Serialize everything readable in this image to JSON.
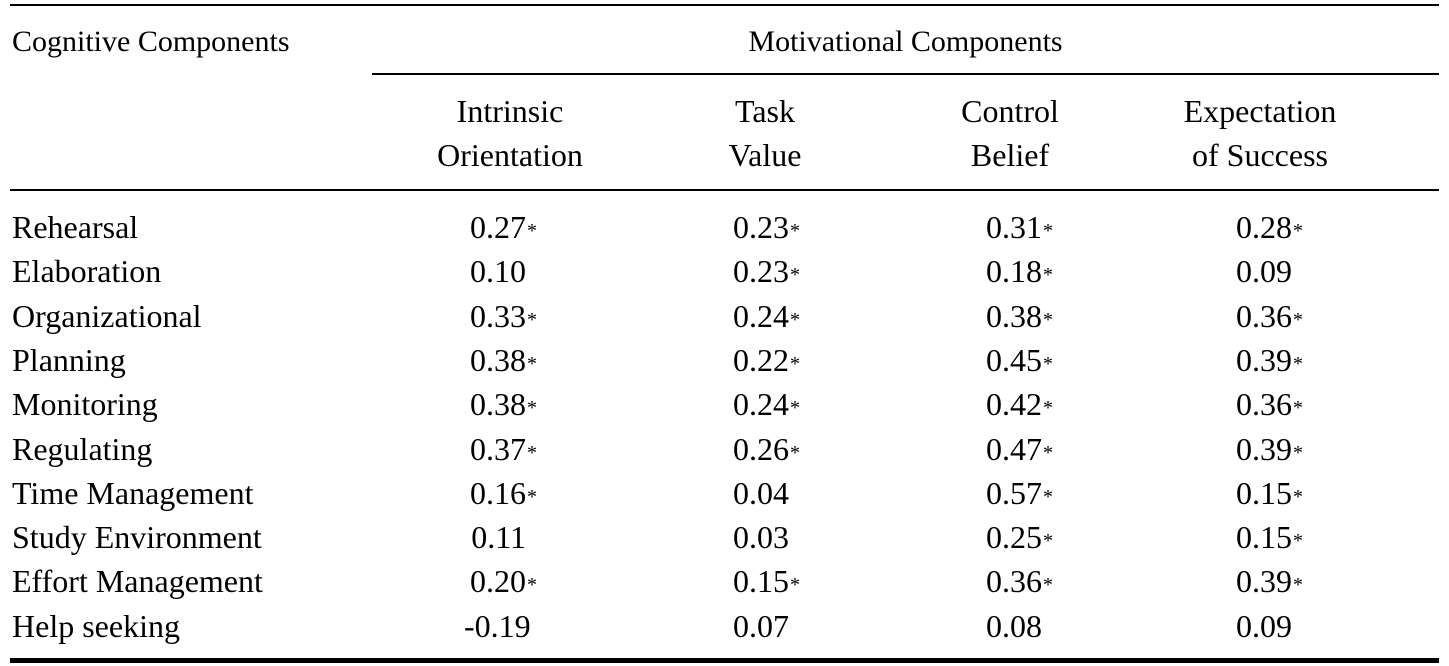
{
  "table": {
    "stub_heading": "Cognitive Components",
    "group_heading": "Motivational Components",
    "columns": [
      [
        "Intrinsic",
        "Orientation"
      ],
      [
        "Task",
        "Value"
      ],
      [
        "Control",
        "Belief"
      ],
      [
        "Expectation",
        "of Success"
      ]
    ],
    "significance_mark": "*",
    "rows": [
      {
        "label": "Rehearsal",
        "cells": [
          {
            "v": "0.27",
            "s": "*"
          },
          {
            "v": "0.23",
            "s": "*"
          },
          {
            "v": "0.31",
            "s": "*"
          },
          {
            "v": "0.28",
            "s": "*"
          }
        ]
      },
      {
        "label": "Elaboration",
        "cells": [
          {
            "v": "0.10",
            "s": ""
          },
          {
            "v": "0.23",
            "s": "*"
          },
          {
            "v": "0.18",
            "s": "*"
          },
          {
            "v": "0.09",
            "s": ""
          }
        ]
      },
      {
        "label": "Organizational",
        "cells": [
          {
            "v": "0.33",
            "s": "*"
          },
          {
            "v": "0.24",
            "s": "*"
          },
          {
            "v": "0.38",
            "s": "*"
          },
          {
            "v": "0.36",
            "s": "*"
          }
        ]
      },
      {
        "label": "Planning",
        "cells": [
          {
            "v": "0.38",
            "s": "*"
          },
          {
            "v": "0.22",
            "s": "*"
          },
          {
            "v": "0.45",
            "s": "*"
          },
          {
            "v": "0.39",
            "s": "*"
          }
        ]
      },
      {
        "label": "Monitoring",
        "cells": [
          {
            "v": "0.38",
            "s": "*"
          },
          {
            "v": "0.24",
            "s": "*"
          },
          {
            "v": "0.42",
            "s": "*"
          },
          {
            "v": "0.36",
            "s": "*"
          }
        ]
      },
      {
        "label": "Regulating",
        "cells": [
          {
            "v": "0.37",
            "s": "*"
          },
          {
            "v": "0.26",
            "s": "*"
          },
          {
            "v": "0.47",
            "s": "*"
          },
          {
            "v": "0.39",
            "s": "*"
          }
        ]
      },
      {
        "label": "Time Management",
        "cells": [
          {
            "v": "0.16",
            "s": "*"
          },
          {
            "v": "0.04",
            "s": ""
          },
          {
            "v": "0.57",
            "s": "*"
          },
          {
            "v": "0.15",
            "s": "*"
          }
        ]
      },
      {
        "label": "Study Environment",
        "cells": [
          {
            "v": "0.11",
            "s": ""
          },
          {
            "v": "0.03",
            "s": ""
          },
          {
            "v": "0.25",
            "s": "*"
          },
          {
            "v": "0.15",
            "s": "*"
          }
        ]
      },
      {
        "label": "Effort Management",
        "cells": [
          {
            "v": "0.20",
            "s": "*"
          },
          {
            "v": "0.15",
            "s": "*"
          },
          {
            "v": "0.36",
            "s": "*"
          },
          {
            "v": "0.39",
            "s": "*"
          }
        ]
      },
      {
        "label": "Help seeking",
        "cells": [
          {
            "v": "-0.19",
            "s": ""
          },
          {
            "v": "0.07",
            "s": ""
          },
          {
            "v": "0.08",
            "s": ""
          },
          {
            "v": "0.09",
            "s": ""
          }
        ]
      }
    ]
  }
}
